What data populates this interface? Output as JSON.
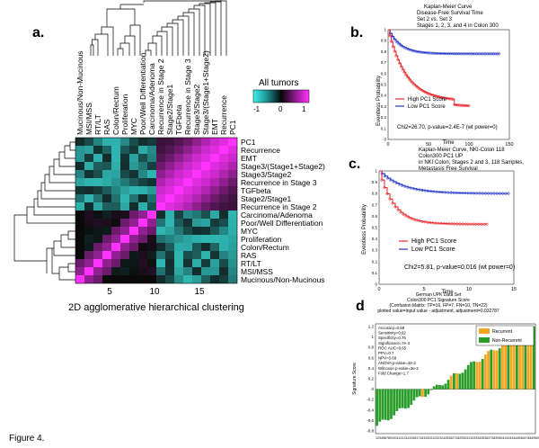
{
  "figure_label": "Figure 4.",
  "panel_a": {
    "letter": "a.",
    "caption": "2D agglomerative hierarchical clustering",
    "colorbar_title": "All tumors",
    "colorbar_ticks": [
      "-1",
      "0",
      "1"
    ],
    "x_ticks": [
      "5",
      "10",
      "15"
    ],
    "column_labels": [
      "Mucinous/Non-Mucinous",
      "MSI/MSS",
      "RT/LT",
      "RAS",
      "Colon/Rectum",
      "Proliferation",
      "MYC",
      "Poor/Well Differentiation",
      "Carcinoma/Adenoma",
      "Recurrence in Stage 2",
      "Stage2/Stage1",
      "TGFbeta",
      "Recurrence in Stage 3",
      "Stage3/Stage2",
      "Stage3/(Stage1+Stage2)",
      "EMT",
      "Recurrence",
      "PC1"
    ],
    "row_labels": [
      "PC1",
      "Recurrence",
      "EMT",
      "Stage3/(Stage1+Stage2)",
      "Stage3/Stage2",
      "Recurrence in Stage 3",
      "TGFbeta",
      "Stage2/Stage1",
      "Recurrence in Stage 2",
      "Carcinoma/Adenoma",
      "Poor/Well Differentiation",
      "MYC",
      "Proliferation",
      "Colon/Rectum",
      "RAS",
      "RT/LT",
      "MSI/MSS",
      "Mucinous/Non-Mucinous"
    ]
  },
  "panel_b": {
    "letter": "b.",
    "title_lines": [
      "Kaplan-Meier Curve",
      "Disease-Free Survival Time",
      "Set 2 vs. Set 3",
      "Stages 1, 2, 3, and 4 in Colon 300"
    ],
    "legend": [
      "High PC1 Score",
      "Low PC1 Score"
    ],
    "stat": "Chi2=26.70, p-value=2.4E-7 (wt power=0)",
    "ylabel": "Eventless Probability",
    "xlabel": "Time",
    "x_ticks": [
      "0",
      "50",
      "100",
      "150"
    ],
    "y_ticks": [
      "0",
      "0.1",
      "0.2",
      "0.3",
      "0.4",
      "0.5",
      "0.6",
      "0.7",
      "0.8",
      "0.9",
      "1"
    ]
  },
  "panel_c": {
    "letter": "c.",
    "title_lines": [
      "Kaplan-Meier Curve, NKI-Colon 118",
      "Colon300 PC1 UP",
      "in NKI Colon, Stages 2 and 3, 118 Samples,",
      "Metastasis Free Survival"
    ],
    "legend": [
      "High PC1 Score",
      "Low PC1 Score"
    ],
    "stat": "Chi2=5.81, p-value=0.016 (wt power=0)",
    "ylabel": "Eventless Probability",
    "xlabel": "Time",
    "x_ticks": [
      "0",
      "5",
      "10",
      "15"
    ],
    "y_ticks": [
      "0",
      "0.1",
      "0.2",
      "0.3",
      "0.4",
      "0.5",
      "0.6",
      "0.7",
      "0.8",
      "0.9",
      "1"
    ]
  },
  "panel_d": {
    "letter": "d",
    "title_lines": [
      "German UPK Data Set",
      "Colon300 PC1 Signature Score",
      "(Confusion Matrix: TP=16, FP=7, FN=10, TN=22)",
      "plotted value=input value - adjustment, adjustment=0.032787"
    ],
    "ylabel": "Signature Score",
    "y_ticks": [
      "1.2",
      "1",
      "0.8",
      "0.6",
      "0.4",
      "0.2",
      "0",
      "-0.2",
      "-0.4",
      "-0.6",
      "-0.8"
    ],
    "legend": [
      "Recurrent",
      "Non-Recurrent"
    ],
    "stats": [
      "Accuracy=0.69",
      "Sensitivity=0.62",
      "Specificity=0.76",
      "Significance=7e-3",
      "ROC AUC=0.65",
      "PPV=0.7",
      "NPV=0.69",
      "ANOVA p-value=3e-2",
      "Wilcoxon p-value=3e-2",
      "Fold Change=1.7"
    ],
    "x_axis_text": "1234567891011121314151617181920212223242526272829303132333435363738394041424344454647484950515253545556"
  },
  "colors": {
    "high": "#e8262b",
    "low": "#2436c8",
    "recurrent": "#f5a623",
    "non_recurrent": "#2a9d2a"
  }
}
